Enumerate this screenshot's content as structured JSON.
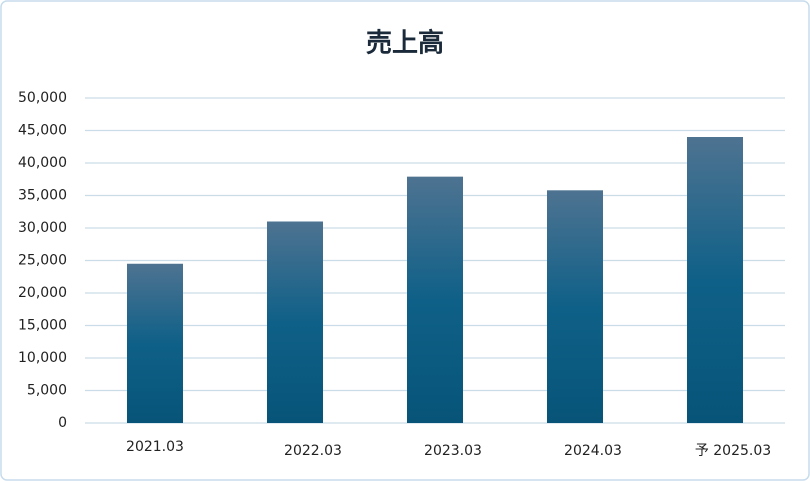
{
  "chart_data": {
    "type": "bar",
    "title": "売上高",
    "categories": [
      "2021.03",
      "2022.03",
      "2023.03",
      "2024.03",
      "予 2025.03"
    ],
    "values": [
      24500,
      31000,
      37900,
      35800,
      44000
    ],
    "colors": [
      "#4e7391",
      "#0f6088",
      "#075478"
    ],
    "ylim": [
      0,
      50000
    ],
    "yticks": [
      0,
      {
        "value": 5000,
        "label": "5,000"
      },
      {
        "value": 10000,
        "label": "10,000"
      },
      {
        "value": 15000,
        "label": "15,000"
      },
      {
        "value": 20000,
        "label": "20,000"
      },
      {
        "value": 25000,
        "label": "25,000"
      },
      {
        "value": 30000,
        "label": "30,000"
      },
      {
        "value": 35000,
        "label": "35,000"
      },
      {
        "value": 40000,
        "label": "40,000"
      },
      {
        "value": 45000,
        "label": "45,000"
      },
      {
        "value": 50000,
        "label": "50,000"
      }
    ],
    "grid": true
  }
}
